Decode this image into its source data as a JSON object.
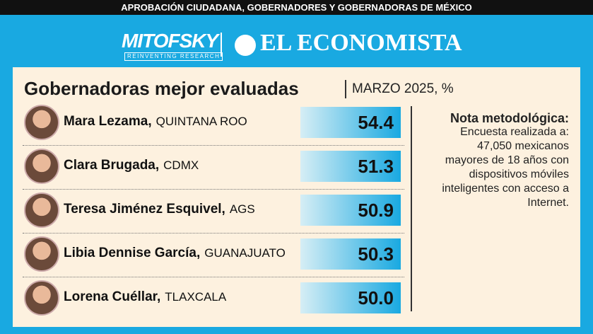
{
  "header": {
    "banner": "APROBACIÓN CIUDADANA, GOBERNADORES Y GOBERNADORAS DE MÉXICO",
    "logo_left": "MITOFSKY",
    "logo_left_tagline": "REINVENTING RESEARCH",
    "logo_right": "EL ECONOMISTA"
  },
  "panel": {
    "title": "Gobernadoras mejor evaluadas",
    "subtitle": "MARZO 2025, %",
    "rows": [
      {
        "name": "Mara Lezama,",
        "state": "QUINTANA ROO",
        "value": "54.4"
      },
      {
        "name": "Clara Brugada,",
        "state": "CDMX",
        "value": "51.3"
      },
      {
        "name": "Teresa Jiménez Esquivel,",
        "state": "AGS",
        "value": "50.9"
      },
      {
        "name": "Libia Dennise García,",
        "state": "GUANAJUATO",
        "value": "50.3"
      },
      {
        "name": "Lorena Cuéllar,",
        "state": "TLAXCALA",
        "value": "50.0"
      }
    ],
    "note": {
      "title": "Nota metodológica:",
      "lines": [
        "Encuesta realizada a:",
        "47,050 mexicanos",
        "mayores de 18 años con",
        "dispositivos móviles",
        "inteligentes con acceso a",
        "Internet."
      ]
    }
  }
}
